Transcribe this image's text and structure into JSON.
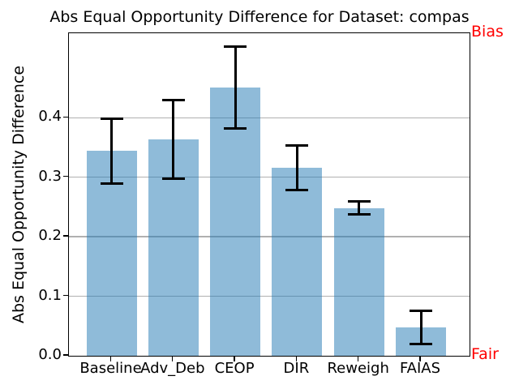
{
  "chart_data": {
    "type": "bar",
    "title": "Abs Equal Opportunity Difference for Dataset: compas",
    "ylabel": "Abs Equal Opportunity Difference",
    "xlabel": "",
    "categories": [
      "Baseline",
      "Adv_Deb",
      "CEOP",
      "DIR",
      "Reweigh",
      "FAIAS"
    ],
    "values": [
      0.344,
      0.363,
      0.451,
      0.316,
      0.248,
      0.048
    ],
    "errors": [
      0.055,
      0.066,
      0.069,
      0.037,
      0.011,
      0.028
    ],
    "yticks": [
      0.0,
      0.1,
      0.2,
      0.3,
      0.4
    ],
    "ytick_labels": [
      "0.0",
      "0.1",
      "0.2",
      "0.3",
      "0.4"
    ],
    "ylim": [
      0,
      0.542
    ],
    "grid": true,
    "legend": null,
    "bar_color": "#1f77b4",
    "bar_alpha": 0.5,
    "bar_color_rendered": "#8fbbda",
    "grid_color": "#b0b0b0",
    "error_color": "#000000",
    "annotations": [
      {
        "text": "Bias",
        "position": "top-right",
        "color": "#ff0000"
      },
      {
        "text": "Fair",
        "position": "bottom-right",
        "color": "#ff0000"
      }
    ]
  }
}
